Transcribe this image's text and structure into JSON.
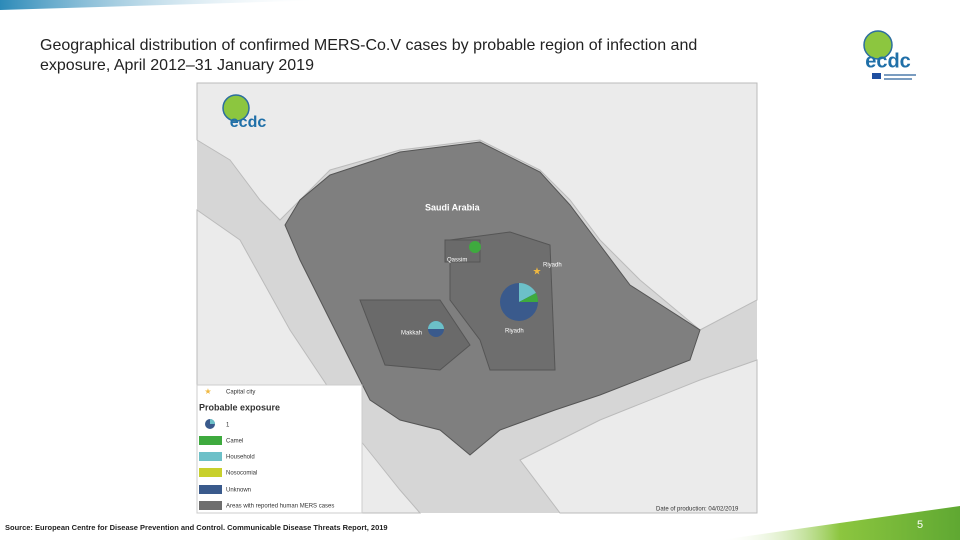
{
  "header": {
    "title_line1": "Geographical distribution of confirmed MERS-Co.V cases by probable region of infection and",
    "title_line2": "exposure, April 2012–31 January 2019",
    "logo": "ecdc"
  },
  "map": {
    "logo": "ecdc",
    "country": "Saudi Arabia",
    "labels": [
      "Qassim",
      "Riyadh",
      "Riyadh",
      "Makkah"
    ],
    "production_date": "Date of production: 04/02/2019"
  },
  "legend": {
    "capital": "Capital city",
    "title": "Probable exposure",
    "size": "1",
    "items": [
      "Camel",
      "Household",
      "Nosocomial",
      "Unknown",
      "Areas with reported human MERS cases"
    ]
  },
  "footer": {
    "source": "Source: European Centre for Disease Prevention and Control. Communicable Disease Threats Report, 2019",
    "page": "5"
  }
}
